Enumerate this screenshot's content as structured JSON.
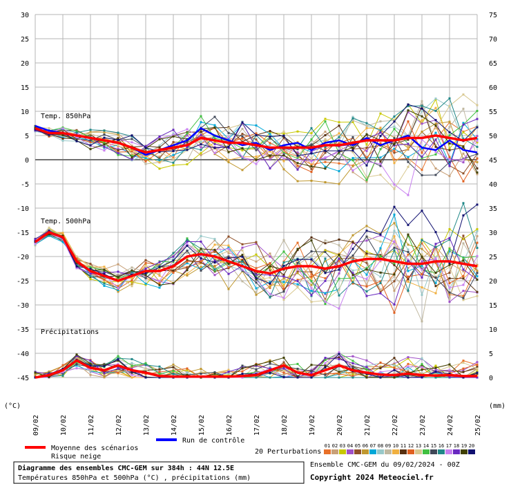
{
  "chart_data": {
    "type": "line",
    "title": "Diagramme des ensembles CMC-GEM sur 384h : 44N 12.5E",
    "subtitle": "Températures 850hPa et 500hPa (°C) , précipitations (mm)",
    "run_info": "Ensemble CMC-GEM du 09/02/2024 - 00Z",
    "copyright": "Copyright 2024 Meteociel.fr",
    "y_left_label": "(°C)",
    "y_right_label": "(mm)",
    "y_left_ticks": [
      30,
      25,
      20,
      15,
      10,
      5,
      0,
      -5,
      -10,
      -15,
      -20,
      -25,
      -30,
      -35,
      -40,
      -45
    ],
    "y_right_ticks": [
      75,
      70,
      65,
      60,
      55,
      50,
      45,
      40,
      35,
      30,
      25,
      20,
      15,
      10,
      5,
      0
    ],
    "ylim_left": [
      -45,
      30
    ],
    "ylim_right": [
      0,
      75
    ],
    "x_tick_labels": [
      "09/02",
      "10/02",
      "11/02",
      "12/02",
      "13/02",
      "14/02",
      "15/02",
      "16/02",
      "17/02",
      "18/02",
      "19/02",
      "20/02",
      "21/02",
      "22/02",
      "23/02",
      "24/02",
      "25/02"
    ],
    "x_days": 16,
    "section_labels": {
      "t850": "Temp. 850hPa",
      "t500": "Temp. 500hPa",
      "precip": "Précipitations"
    },
    "legend": {
      "mean": "Moyenne des scénarios",
      "snow": "Risque neige",
      "control": "Run de contrôle",
      "perturbations": "20 Perturbations",
      "perturbation_numbers": [
        "01",
        "02",
        "03",
        "04",
        "05",
        "06",
        "07",
        "08",
        "09",
        "10",
        "11",
        "12",
        "13",
        "14",
        "15",
        "16",
        "17",
        "18",
        "19",
        "20"
      ]
    },
    "colors": {
      "mean": "#ff0000",
      "control": "#0000ff",
      "perturbations": [
        "#e87028",
        "#c8a078",
        "#c8c800",
        "#a050c8",
        "#905028",
        "#c09830",
        "#00a8d8",
        "#98c8c8",
        "#c0b8a0",
        "#f0b040",
        "#583010",
        "#e06020",
        "#d8c890",
        "#40c040",
        "#404858",
        "#208888",
        "#c880f0",
        "#6828c0",
        "#404000",
        "#101070"
      ]
    },
    "x": [
      0,
      0.5,
      1,
      1.5,
      2,
      2.5,
      3,
      3.5,
      4,
      4.5,
      5,
      5.5,
      6,
      6.5,
      7,
      7.5,
      8,
      8.5,
      9,
      9.5,
      10,
      10.5,
      11,
      11.5,
      12,
      12.5,
      13,
      13.5,
      14,
      14.5,
      15,
      15.5,
      16
    ],
    "series": [
      {
        "name": "Moyenne des scénarios",
        "variable": "t850",
        "values": [
          6.5,
          5.5,
          5.5,
          5.0,
          4.5,
          4.0,
          3.5,
          2.5,
          1.5,
          2.0,
          2.5,
          3.0,
          4.5,
          4.0,
          3.5,
          3.5,
          3.0,
          2.5,
          2.5,
          2.5,
          2.5,
          3.0,
          3.0,
          3.5,
          4.0,
          4.0,
          4.0,
          4.5,
          4.5,
          5.0,
          4.5,
          4.0,
          4.5
        ]
      },
      {
        "name": "Run de contrôle",
        "variable": "t850",
        "values": [
          7.0,
          6.0,
          5.5,
          5.0,
          4.5,
          4.0,
          3.5,
          2.5,
          1.0,
          2.0,
          3.0,
          4.0,
          6.5,
          5.0,
          4.0,
          3.0,
          3.5,
          2.0,
          3.0,
          3.5,
          2.0,
          3.5,
          4.0,
          3.0,
          4.5,
          3.0,
          4.0,
          5.0,
          2.5,
          2.0,
          4.0,
          2.0,
          1.5
        ]
      },
      {
        "name": "Moyenne des scénarios",
        "variable": "t500",
        "values": [
          -17.0,
          -15.0,
          -16.0,
          -21.0,
          -23.0,
          -24.0,
          -25.0,
          -24.0,
          -23.0,
          -23.0,
          -22.0,
          -20.0,
          -19.5,
          -20.0,
          -21.0,
          -22.0,
          -23.0,
          -23.5,
          -22.5,
          -22.0,
          -22.0,
          -22.5,
          -22.0,
          -21.0,
          -20.5,
          -20.5,
          -21.0,
          -21.5,
          -21.5,
          -21.0,
          -21.0,
          -21.5,
          -22.0
        ]
      },
      {
        "name": "Moyenne des scénarios",
        "variable": "precip",
        "values": [
          0.0,
          0.5,
          1.5,
          3.5,
          2.0,
          1.5,
          2.5,
          1.5,
          1.0,
          0.3,
          0.2,
          0.2,
          0.2,
          0.2,
          0.2,
          0.3,
          0.5,
          1.5,
          2.5,
          1.0,
          0.5,
          1.5,
          2.5,
          1.5,
          1.0,
          0.6,
          0.5,
          0.8,
          0.5,
          0.4,
          0.5,
          0.3,
          0.3
        ]
      }
    ]
  }
}
